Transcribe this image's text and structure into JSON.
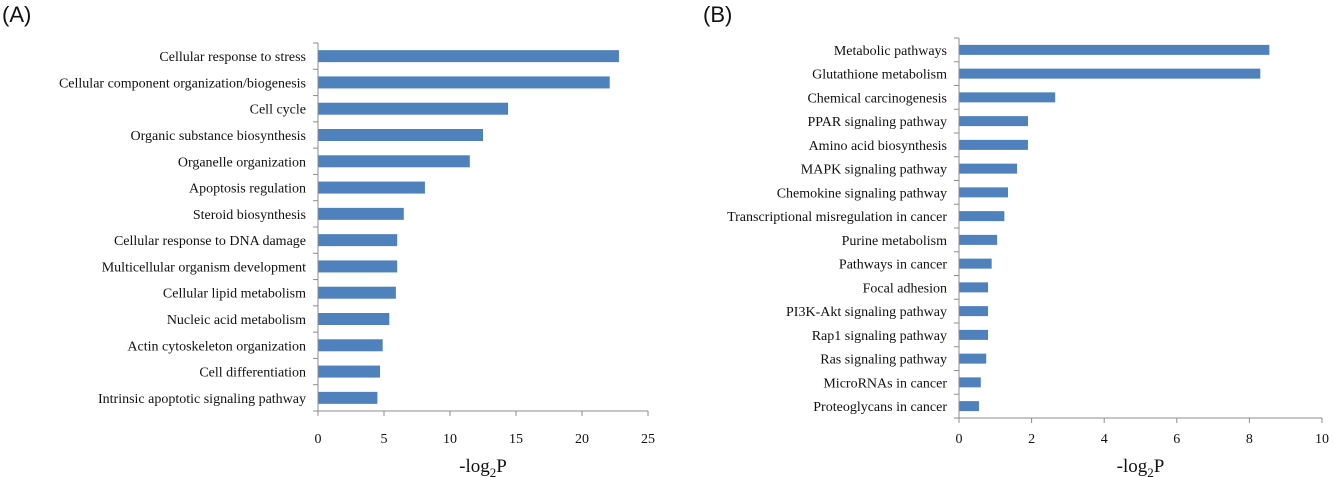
{
  "colors": {
    "bar": "#4f81bd",
    "axis": "#8c8c8c"
  },
  "chart_data": [
    {
      "type": "bar",
      "orientation": "horizontal",
      "panel_label": "(A)",
      "categories": [
        "Cellular response to stress",
        "Cellular component organization/biogenesis",
        "Cell cycle",
        "Organic substance biosynthesis",
        "Organelle organization",
        "Apoptosis regulation",
        "Steroid biosynthesis",
        "Cellular response to DNA damage",
        "Multicellular organism development",
        "Cellular lipid metabolism",
        "Nucleic acid metabolism",
        "Actin cytoskeleton organization",
        "Cell differentiation",
        "Intrinsic apoptotic signaling pathway"
      ],
      "values": [
        22.8,
        22.1,
        14.4,
        12.5,
        11.5,
        8.1,
        6.5,
        6.0,
        6.0,
        5.9,
        5.4,
        4.9,
        4.7,
        4.5
      ],
      "xlim": [
        0,
        25
      ],
      "xticks": [
        "0",
        "5",
        "10",
        "15",
        "20",
        "25"
      ],
      "xlabel_main": "-log",
      "xlabel_sub": "2",
      "xlabel_tail": "P",
      "grid": false
    },
    {
      "type": "bar",
      "orientation": "horizontal",
      "panel_label": "(B)",
      "categories": [
        "Metabolic pathways",
        "Glutathione metabolism",
        "Chemical carcinogenesis",
        "PPAR signaling pathway",
        "Amino acid biosynthesis",
        "MAPK signaling pathway",
        "Chemokine signaling pathway",
        "Transcriptional misregulation in cancer",
        "Purine metabolism",
        "Pathways in cancer",
        "Focal adhesion",
        "PI3K-Akt signaling pathway",
        "Rap1 signaling pathway",
        "Ras signaling pathway",
        "MicroRNAs in cancer",
        "Proteoglycans in cancer"
      ],
      "values": [
        8.55,
        8.3,
        2.65,
        1.9,
        1.9,
        1.6,
        1.35,
        1.25,
        1.05,
        0.9,
        0.8,
        0.8,
        0.8,
        0.75,
        0.6,
        0.55
      ],
      "xlim": [
        0,
        10
      ],
      "xticks": [
        "0",
        "2",
        "4",
        "6",
        "8",
        "10"
      ],
      "xlabel_main": "-log",
      "xlabel_sub": "2",
      "xlabel_tail": "P",
      "grid": false
    }
  ]
}
